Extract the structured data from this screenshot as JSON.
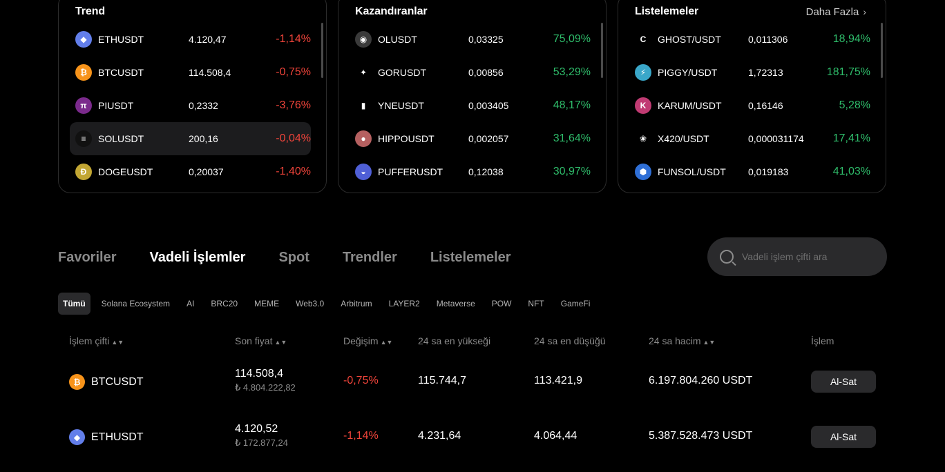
{
  "cards": [
    {
      "title": "Trend",
      "more": "",
      "rows": [
        {
          "symbol": "ETHUSDT",
          "price": "4.120,47",
          "change": "-1,14%",
          "dir": "neg",
          "icon": "eth-icon",
          "color": "#627eea",
          "glyph": "◆",
          "highlight": false
        },
        {
          "symbol": "BTCUSDT",
          "price": "114.508,4",
          "change": "-0,75%",
          "dir": "neg",
          "icon": "btc-icon",
          "color": "#f7931a",
          "glyph": "₿",
          "highlight": false
        },
        {
          "symbol": "PIUSDT",
          "price": "0,2332",
          "change": "-3,76%",
          "dir": "neg",
          "icon": "pi-icon",
          "color": "#7b2a8c",
          "glyph": "π",
          "highlight": false
        },
        {
          "symbol": "SOLUSDT",
          "price": "200,16",
          "change": "-0,04%",
          "dir": "neg",
          "icon": "sol-icon",
          "color": "#111111",
          "glyph": "≡",
          "highlight": true
        },
        {
          "symbol": "DOGEUSDT",
          "price": "0,20037",
          "change": "-1,40%",
          "dir": "neg",
          "icon": "doge-icon",
          "color": "#c2a633",
          "glyph": "Ð",
          "highlight": false
        }
      ]
    },
    {
      "title": "Kazandıranlar",
      "more": "",
      "rows": [
        {
          "symbol": "OLUSDT",
          "price": "0,03325",
          "change": "75,09%",
          "dir": "pos",
          "icon": "ol-icon",
          "color": "#3a3a3a",
          "glyph": "◉",
          "highlight": false
        },
        {
          "symbol": "GORUSDT",
          "price": "0,00856",
          "change": "53,29%",
          "dir": "pos",
          "icon": "gor-icon",
          "color": "#000000",
          "glyph": "✦",
          "highlight": false
        },
        {
          "symbol": "YNEUSDT",
          "price": "0,003405",
          "change": "48,17%",
          "dir": "pos",
          "icon": "yne-icon",
          "color": "#000000",
          "glyph": "▮",
          "highlight": false
        },
        {
          "symbol": "HIPPOUSDT",
          "price": "0,002057",
          "change": "31,64%",
          "dir": "pos",
          "icon": "hippo-icon",
          "color": "#b56060",
          "glyph": "●",
          "highlight": false
        },
        {
          "symbol": "PUFFERUSDT",
          "price": "0,12038",
          "change": "30,97%",
          "dir": "pos",
          "icon": "puffer-icon",
          "color": "#4f5fd6",
          "glyph": "◒",
          "highlight": false
        }
      ]
    },
    {
      "title": "Listelemeler",
      "more": "Daha Fazla",
      "rows": [
        {
          "symbol": "GHOST/USDT",
          "price": "0,011306",
          "change": "18,94%",
          "dir": "pos",
          "icon": "ghost-icon",
          "color": "#000000",
          "glyph": "C",
          "highlight": false
        },
        {
          "symbol": "PIGGY/USDT",
          "price": "1,72313",
          "change": "181,75%",
          "dir": "pos",
          "icon": "piggy-icon",
          "color": "#3aa7c9",
          "glyph": "⚡",
          "highlight": false
        },
        {
          "symbol": "KARUM/USDT",
          "price": "0,16146",
          "change": "5,28%",
          "dir": "pos",
          "icon": "karum-icon",
          "color": "#c13b73",
          "glyph": "K",
          "highlight": false
        },
        {
          "symbol": "X420/USDT",
          "price": "0,000031174",
          "change": "17,41%",
          "dir": "pos",
          "icon": "x420-icon",
          "color": "#000000",
          "glyph": "❀",
          "highlight": false
        },
        {
          "symbol": "FUNSOL/USDT",
          "price": "0,019183",
          "change": "41,03%",
          "dir": "pos",
          "icon": "funsol-icon",
          "color": "#2f6fd6",
          "glyph": "⬢",
          "highlight": false
        }
      ]
    }
  ],
  "tabs": [
    {
      "label": "Favoriler",
      "active": false
    },
    {
      "label": "Vadeli İşlemler",
      "active": true
    },
    {
      "label": "Spot",
      "active": false
    },
    {
      "label": "Trendler",
      "active": false
    },
    {
      "label": "Listelemeler",
      "active": false
    }
  ],
  "search": {
    "placeholder": "Vadeli işlem çifti ara"
  },
  "filters": [
    {
      "label": "Tümü",
      "active": true
    },
    {
      "label": "Solana Ecosystem",
      "active": false
    },
    {
      "label": "AI",
      "active": false
    },
    {
      "label": "BRC20",
      "active": false
    },
    {
      "label": "MEME",
      "active": false
    },
    {
      "label": "Web3.0",
      "active": false
    },
    {
      "label": "Arbitrum",
      "active": false
    },
    {
      "label": "LAYER2",
      "active": false
    },
    {
      "label": "Metaverse",
      "active": false
    },
    {
      "label": "POW",
      "active": false
    },
    {
      "label": "NFT",
      "active": false
    },
    {
      "label": "GameFi",
      "active": false
    }
  ],
  "table": {
    "headers": [
      {
        "label": "İşlem çifti",
        "sortable": true
      },
      {
        "label": "Son fiyat",
        "sortable": true
      },
      {
        "label": "Değişim",
        "sortable": true
      },
      {
        "label": "24 sa en yükseği",
        "sortable": false
      },
      {
        "label": "24 sa en düşüğü",
        "sortable": false
      },
      {
        "label": "24 sa hacim",
        "sortable": true
      },
      {
        "label": "İşlem",
        "sortable": false
      }
    ],
    "rows": [
      {
        "pair": "BTCUSDT",
        "icon": "btc-icon",
        "color": "#f7931a",
        "glyph": "₿",
        "last": "114.508,4",
        "last_try": "₺ 4.804.222,82",
        "change": "-0,75%",
        "high": "115.744,7",
        "low": "113.421,9",
        "volume": "6.197.804.260 USDT",
        "action": "Al-Sat"
      },
      {
        "pair": "ETHUSDT",
        "icon": "eth-icon",
        "color": "#627eea",
        "glyph": "◆",
        "last": "4.120,52",
        "last_try": "₺ 172.877,24",
        "change": "-1,14%",
        "high": "4.231,64",
        "low": "4.064,44",
        "volume": "5.387.528.473 USDT",
        "action": "Al-Sat"
      }
    ]
  }
}
